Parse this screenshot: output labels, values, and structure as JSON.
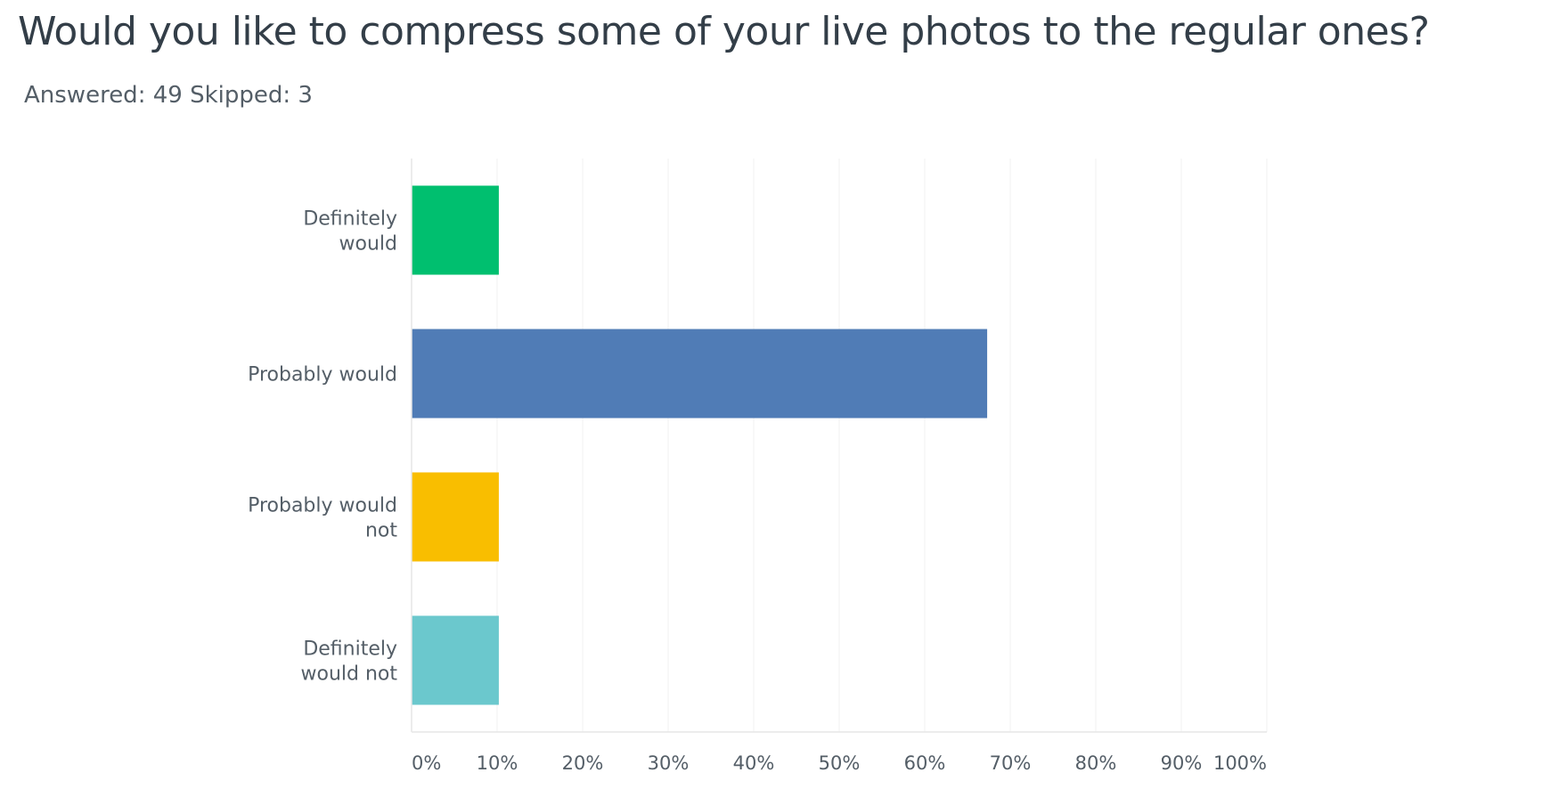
{
  "question": {
    "title": "Would you like to compress some of your live photos to the regular ones?",
    "answered_label": "Answered:",
    "answered_count": "49",
    "skipped_label": "Skipped:",
    "skipped_count": "3"
  },
  "chart_data": {
    "type": "bar",
    "orientation": "horizontal",
    "categories": [
      [
        "Definitely",
        "would"
      ],
      [
        "Probably would"
      ],
      [
        "Probably would",
        "not"
      ],
      [
        "Definitely",
        "would not"
      ]
    ],
    "values": [
      10.2,
      67.3,
      10.2,
      10.2
    ],
    "colors": [
      "#00bf6f",
      "#507cb6",
      "#f9be00",
      "#6bc8cd"
    ],
    "xlim": [
      0,
      100
    ],
    "ticks": [
      "0%",
      "10%",
      "20%",
      "30%",
      "40%",
      "50%",
      "60%",
      "70%",
      "80%",
      "90%",
      "100%"
    ],
    "grid": true,
    "legend": "none"
  }
}
